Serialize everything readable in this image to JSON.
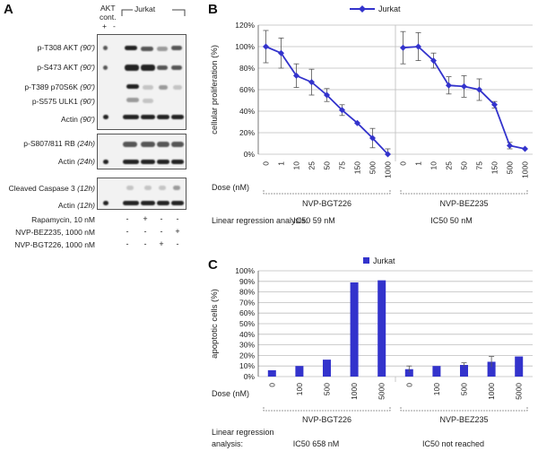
{
  "panel_a": {
    "letter": "A",
    "akt_header": "AKT",
    "cont_header": "cont.",
    "akt_plus": "+",
    "akt_minus": "-",
    "jurkat_header": "Jurkat",
    "blot_labels": [
      {
        "text": "p-T308 AKT",
        "time": "(90')"
      },
      {
        "text": "p-S473 AKT",
        "time": "(90')"
      },
      {
        "text": "p-T389 p70S6K",
        "time": "(90')"
      },
      {
        "text": "p-S575 ULK1",
        "time": "(90')"
      },
      {
        "text": "Actin",
        "time": "(90')"
      },
      {
        "text": "p-S807/811 RB",
        "time": "(24h)"
      },
      {
        "text": "Actin",
        "time": "(24h)"
      },
      {
        "text": "Cleaved Caspase 3",
        "time": "(12h)"
      },
      {
        "text": "Actin",
        "time": "(12h)"
      }
    ],
    "treatments": [
      {
        "label": "Rapamycin, 10 nM",
        "signs": [
          "-",
          "+",
          "-",
          "-"
        ]
      },
      {
        "label": "NVP-BEZ235, 1000 nM",
        "signs": [
          "-",
          "-",
          "-",
          "+"
        ]
      },
      {
        "label": "NVP-BGT226, 1000 nM",
        "signs": [
          "-",
          "-",
          "+",
          "-"
        ]
      }
    ]
  },
  "panel_b": {
    "letter": "B",
    "chart_data": {
      "type": "line",
      "legend": "Jurkat",
      "ylabel": "cellular proliferation (%)",
      "ylim": [
        0,
        120
      ],
      "yticks": [
        "0%",
        "20%",
        "40%",
        "60%",
        "80%",
        "100%",
        "120%"
      ],
      "xlabel": "Dose (nM)",
      "groups": [
        {
          "name": "NVP-BGT226",
          "ic50": "IC50  59 nM",
          "x": [
            "0",
            "1",
            "10",
            "25",
            "50",
            "75",
            "150",
            "500",
            "1000"
          ],
          "values": [
            100,
            94,
            73,
            67,
            55,
            41,
            29,
            15,
            0
          ],
          "errors": [
            15,
            14,
            11,
            12,
            6,
            5,
            0,
            9,
            5
          ]
        },
        {
          "name": "NVP-BEZ235",
          "ic50": "IC50  50 nM",
          "x": [
            "0",
            "1",
            "10",
            "25",
            "50",
            "75",
            "150",
            "500",
            "1000"
          ],
          "values": [
            99,
            100,
            87,
            64,
            63,
            60,
            46,
            8,
            5
          ],
          "errors": [
            15,
            13,
            7,
            8,
            10,
            10,
            3,
            3,
            0
          ]
        }
      ],
      "regression_label": "Linear regression analysis:"
    }
  },
  "panel_c": {
    "letter": "C",
    "chart_data": {
      "type": "bar",
      "legend": "Jurkat",
      "ylabel": "apoptotic cells (%)",
      "ylim": [
        0,
        100
      ],
      "yticks": [
        "0%",
        "10%",
        "20%",
        "30%",
        "40%",
        "50%",
        "60%",
        "70%",
        "80%",
        "90%",
        "100%"
      ],
      "xlabel": "Dose (nM)",
      "groups": [
        {
          "name": "NVP-BGT226",
          "ic50": "IC50  658 nM",
          "x": [
            "0",
            "100",
            "500",
            "1000",
            "5000"
          ],
          "values": [
            6,
            10,
            16,
            89,
            91
          ],
          "errors": [
            0,
            0,
            0,
            0,
            0
          ]
        },
        {
          "name": "NVP-BEZ235",
          "ic50": "IC50  not reached",
          "x": [
            "0",
            "100",
            "500",
            "1000",
            "5000"
          ],
          "values": [
            7,
            10,
            11,
            14,
            19
          ],
          "errors": [
            3,
            0,
            2,
            5,
            0
          ]
        }
      ],
      "regression_label_1": "Linear regression",
      "regression_label_2": "analysis:"
    }
  },
  "colors": {
    "series": "#3333cc",
    "grid": "#bdbdbd",
    "axis": "#555555"
  }
}
